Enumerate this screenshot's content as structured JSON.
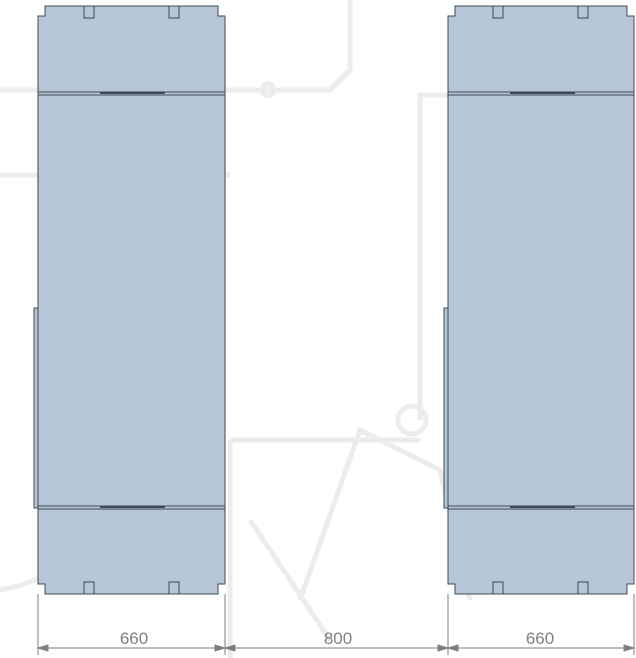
{
  "drawing": {
    "panel_fill": "#b5c6d6",
    "line_color": "#3f4a55",
    "watermark_color": "#ececec",
    "dimension_color": "#7f7f7f",
    "cabinets": [
      {
        "name": "left-cabinet"
      },
      {
        "name": "right-cabinet"
      }
    ],
    "dimensions": [
      {
        "label": "660"
      },
      {
        "label": "800"
      },
      {
        "label": "660"
      }
    ]
  }
}
